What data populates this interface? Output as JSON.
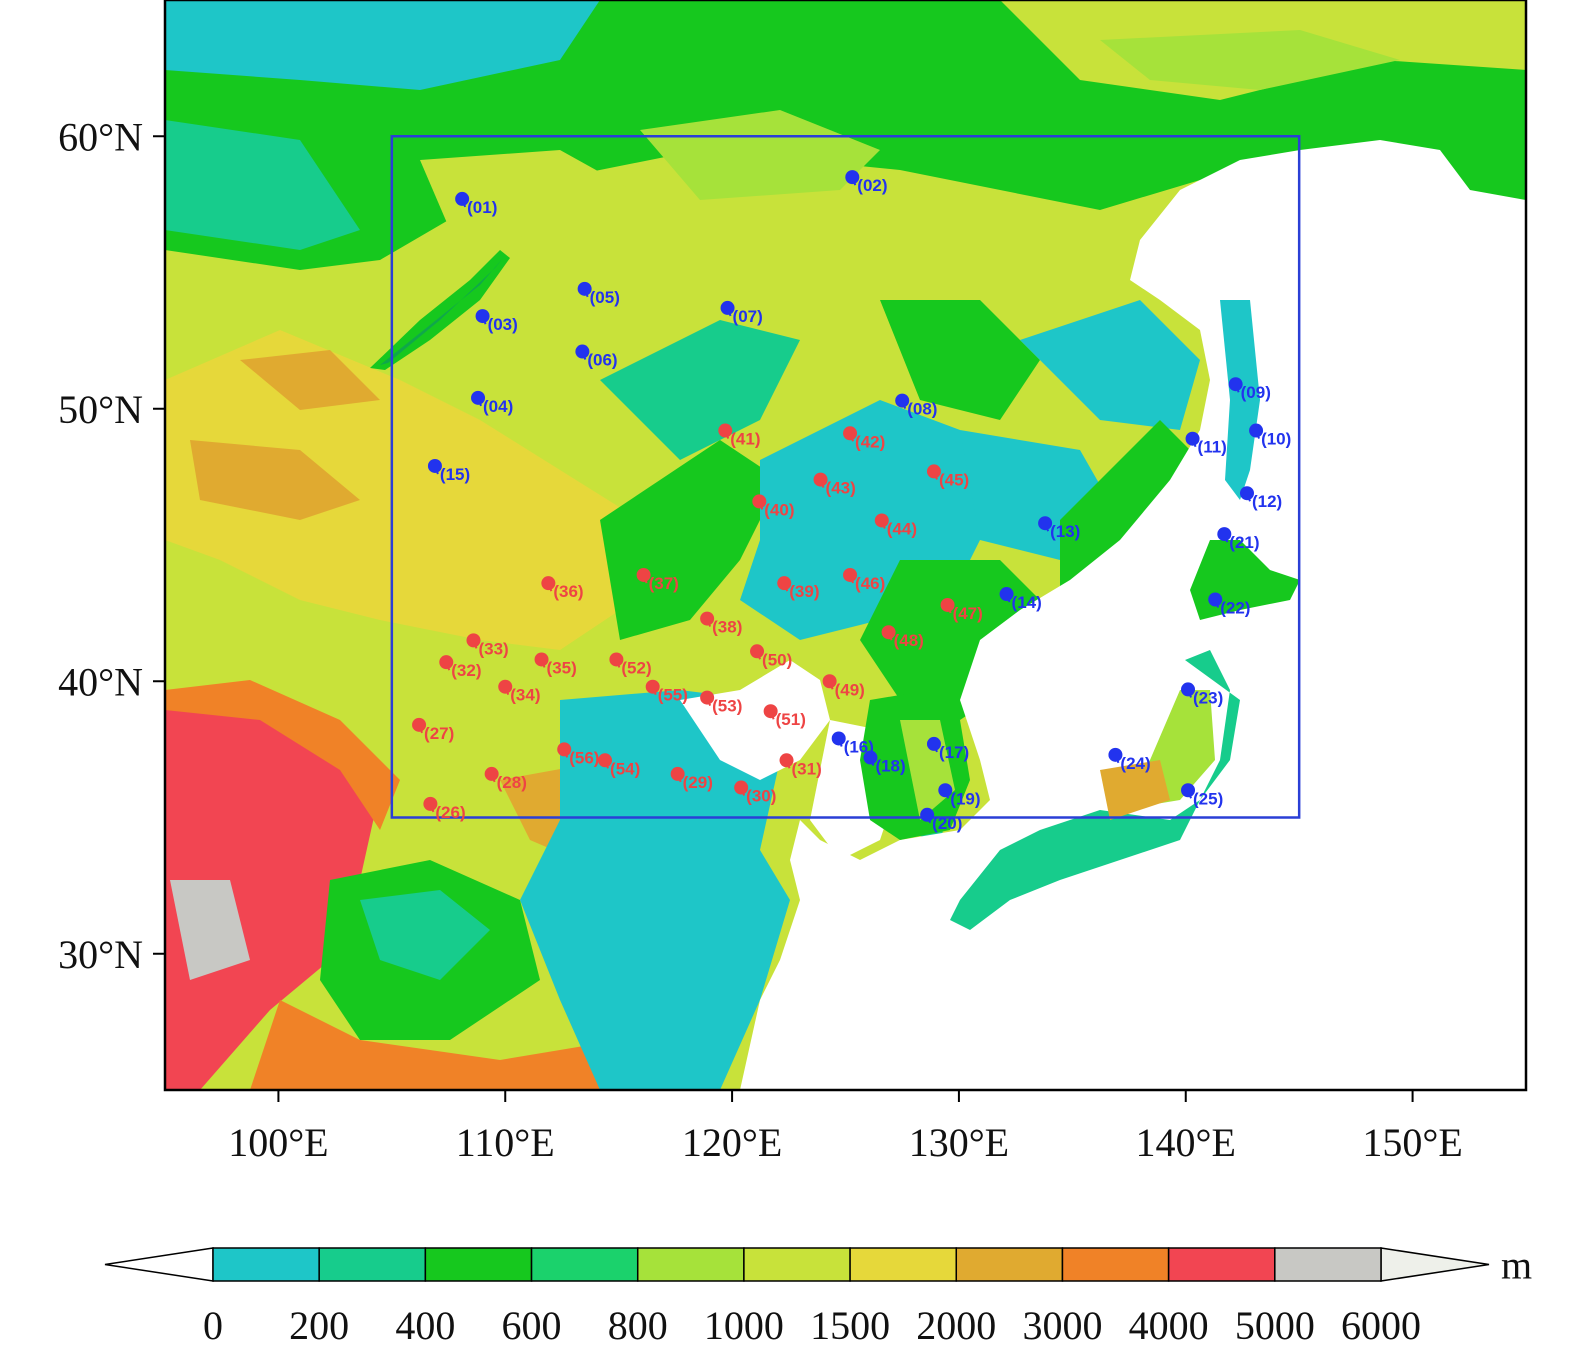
{
  "map": {
    "lon_range": [
      95,
      155
    ],
    "lat_range": [
      25,
      65
    ],
    "lon_ticks": [
      {
        "value": 100,
        "label": "100°E"
      },
      {
        "value": 110,
        "label": "110°E"
      },
      {
        "value": 120,
        "label": "120°E"
      },
      {
        "value": 130,
        "label": "130°E"
      },
      {
        "value": 140,
        "label": "140°E"
      },
      {
        "value": 150,
        "label": "150°E"
      }
    ],
    "lat_ticks": [
      {
        "value": 30,
        "label": "30°N"
      },
      {
        "value": 40,
        "label": "40°N"
      },
      {
        "value": 50,
        "label": "50°N"
      },
      {
        "value": 60,
        "label": "60°N"
      }
    ],
    "domain_box": {
      "lon": [
        105,
        145
      ],
      "lat": [
        35,
        60
      ],
      "color": "#2a3fd6"
    },
    "ocean_color": "#ffffff"
  },
  "stations": {
    "blue_color": "#2233ee",
    "red_color": "#ee4444",
    "blue": [
      {
        "id": "(01)",
        "lon": 108.1,
        "lat": 57.7
      },
      {
        "id": "(02)",
        "lon": 125.3,
        "lat": 58.5
      },
      {
        "id": "(03)",
        "lon": 109.0,
        "lat": 53.4
      },
      {
        "id": "(04)",
        "lon": 108.8,
        "lat": 50.4
      },
      {
        "id": "(05)",
        "lon": 113.5,
        "lat": 54.4
      },
      {
        "id": "(06)",
        "lon": 113.4,
        "lat": 52.1
      },
      {
        "id": "(07)",
        "lon": 119.8,
        "lat": 53.7
      },
      {
        "id": "(08)",
        "lon": 127.5,
        "lat": 50.3
      },
      {
        "id": "(09)",
        "lon": 142.2,
        "lat": 50.9
      },
      {
        "id": "(10)",
        "lon": 143.1,
        "lat": 49.2
      },
      {
        "id": "(11)",
        "lon": 140.3,
        "lat": 48.9
      },
      {
        "id": "(12)",
        "lon": 142.7,
        "lat": 46.9
      },
      {
        "id": "(13)",
        "lon": 133.8,
        "lat": 45.8
      },
      {
        "id": "(14)",
        "lon": 132.1,
        "lat": 43.2
      },
      {
        "id": "(15)",
        "lon": 106.9,
        "lat": 47.9
      },
      {
        "id": "(16)",
        "lon": 124.7,
        "lat": 37.9
      },
      {
        "id": "(17)",
        "lon": 128.9,
        "lat": 37.7
      },
      {
        "id": "(18)",
        "lon": 126.1,
        "lat": 37.2
      },
      {
        "id": "(19)",
        "lon": 129.4,
        "lat": 36.0
      },
      {
        "id": "(20)",
        "lon": 128.6,
        "lat": 35.1
      },
      {
        "id": "(21)",
        "lon": 141.7,
        "lat": 45.4
      },
      {
        "id": "(22)",
        "lon": 141.3,
        "lat": 43.0
      },
      {
        "id": "(23)",
        "lon": 140.1,
        "lat": 39.7
      },
      {
        "id": "(24)",
        "lon": 136.9,
        "lat": 37.3
      },
      {
        "id": "(25)",
        "lon": 140.1,
        "lat": 36.0
      }
    ],
    "red": [
      {
        "id": "(26)",
        "lon": 106.7,
        "lat": 35.5
      },
      {
        "id": "(27)",
        "lon": 106.2,
        "lat": 38.4
      },
      {
        "id": "(28)",
        "lon": 109.4,
        "lat": 36.6
      },
      {
        "id": "(29)",
        "lon": 117.6,
        "lat": 36.6
      },
      {
        "id": "(30)",
        "lon": 120.4,
        "lat": 36.1
      },
      {
        "id": "(31)",
        "lon": 122.4,
        "lat": 37.1
      },
      {
        "id": "(32)",
        "lon": 107.4,
        "lat": 40.7
      },
      {
        "id": "(33)",
        "lon": 108.6,
        "lat": 41.5
      },
      {
        "id": "(34)",
        "lon": 110.0,
        "lat": 39.8
      },
      {
        "id": "(35)",
        "lon": 111.6,
        "lat": 40.8
      },
      {
        "id": "(36)",
        "lon": 111.9,
        "lat": 43.6
      },
      {
        "id": "(37)",
        "lon": 116.1,
        "lat": 43.9
      },
      {
        "id": "(38)",
        "lon": 118.9,
        "lat": 42.3
      },
      {
        "id": "(39)",
        "lon": 122.3,
        "lat": 43.6
      },
      {
        "id": "(40)",
        "lon": 121.2,
        "lat": 46.6
      },
      {
        "id": "(41)",
        "lon": 119.7,
        "lat": 49.2
      },
      {
        "id": "(42)",
        "lon": 125.2,
        "lat": 49.1
      },
      {
        "id": "(43)",
        "lon": 123.9,
        "lat": 47.4
      },
      {
        "id": "(44)",
        "lon": 126.6,
        "lat": 45.9
      },
      {
        "id": "(45)",
        "lon": 128.9,
        "lat": 47.7
      },
      {
        "id": "(46)",
        "lon": 125.2,
        "lat": 43.9
      },
      {
        "id": "(47)",
        "lon": 129.5,
        "lat": 42.8
      },
      {
        "id": "(48)",
        "lon": 126.9,
        "lat": 41.8
      },
      {
        "id": "(49)",
        "lon": 124.3,
        "lat": 40.0
      },
      {
        "id": "(50)",
        "lon": 121.1,
        "lat": 41.1
      },
      {
        "id": "(51)",
        "lon": 121.7,
        "lat": 38.9
      },
      {
        "id": "(52)",
        "lon": 114.9,
        "lat": 40.8
      },
      {
        "id": "(53)",
        "lon": 118.9,
        "lat": 39.4
      },
      {
        "id": "(54)",
        "lon": 114.4,
        "lat": 37.1
      },
      {
        "id": "(55)",
        "lon": 116.5,
        "lat": 39.8
      },
      {
        "id": "(56)",
        "lon": 112.6,
        "lat": 37.5
      }
    ]
  },
  "colorbar": {
    "unit": "m",
    "under_color": "#ffffff",
    "over_color": "#eef0ea",
    "colors": [
      "#1ec6c8",
      "#17cc8c",
      "#16c81e",
      "#1bd26c",
      "#a6e23a",
      "#c8e23a",
      "#e6d83a",
      "#e0aa30",
      "#f08227",
      "#f24552",
      "#c8c8c4"
    ],
    "tick_labels": [
      "0",
      "200",
      "400",
      "600",
      "800",
      "1000",
      "1500",
      "2000",
      "3000",
      "4000",
      "5000",
      "6000"
    ]
  }
}
